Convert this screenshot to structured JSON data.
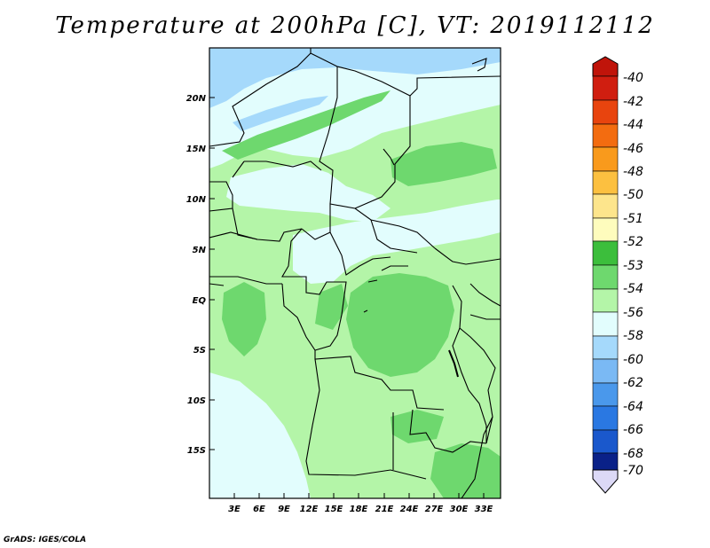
{
  "title": "Temperature at 200hPa [C], VT: 2019112112",
  "credit": "GrADS: IGES/COLA",
  "map": {
    "lat_labels": [
      "20N",
      "15N",
      "10N",
      "5N",
      "EQ",
      "5S",
      "10S",
      "15S"
    ],
    "lon_labels": [
      "3E",
      "6E",
      "9E",
      "12E",
      "15E",
      "18E",
      "21E",
      "24E",
      "27E",
      "30E",
      "33E"
    ]
  },
  "colors": {
    "c_m40": "#d01e10",
    "c_m42": "#e8440e",
    "c_m44": "#f36c10",
    "c_m46": "#f99a1c",
    "c_m48": "#fcc040",
    "c_m50": "#fde58c",
    "c_m51": "#fefcbd",
    "c_m52": "#3cbe3c",
    "c_m53": "#6ed86e",
    "c_m54": "#b4f5a8",
    "c_m56": "#e2fdfd",
    "c_m58": "#a5d9fb",
    "c_m60": "#7ab9f4",
    "c_m62": "#4a98eb",
    "c_m64": "#2a78e2",
    "c_m66": "#1a58cc",
    "c_m68": "#0f3cb0",
    "c_m70": "#0a2188",
    "c_tri_bot": "#071266",
    "c_tri_end": "#dcd9f6",
    "land_light": "#b4f5a8",
    "land_mid": "#6ed86e",
    "sky_pale": "#e2fdfd",
    "sky_blue": "#a5d9fb"
  },
  "legend": {
    "labels": [
      "-40",
      "-42",
      "-44",
      "-46",
      "-48",
      "-50",
      "-51",
      "-52",
      "-53",
      "-54",
      "-56",
      "-58",
      "-60",
      "-62",
      "-64",
      "-66",
      "-68",
      "-70"
    ],
    "colors": [
      "#d01e10",
      "#e8440e",
      "#f36c10",
      "#f99a1c",
      "#fcc040",
      "#fde58c",
      "#fefcbd",
      "#3cbe3c",
      "#6ed86e",
      "#b4f5a8",
      "#e2fdfd",
      "#a5d9fb",
      "#7ab9f4",
      "#4a98eb",
      "#2a78e2",
      "#1a58cc",
      "#0f3cb0",
      "#0a2188"
    ]
  }
}
